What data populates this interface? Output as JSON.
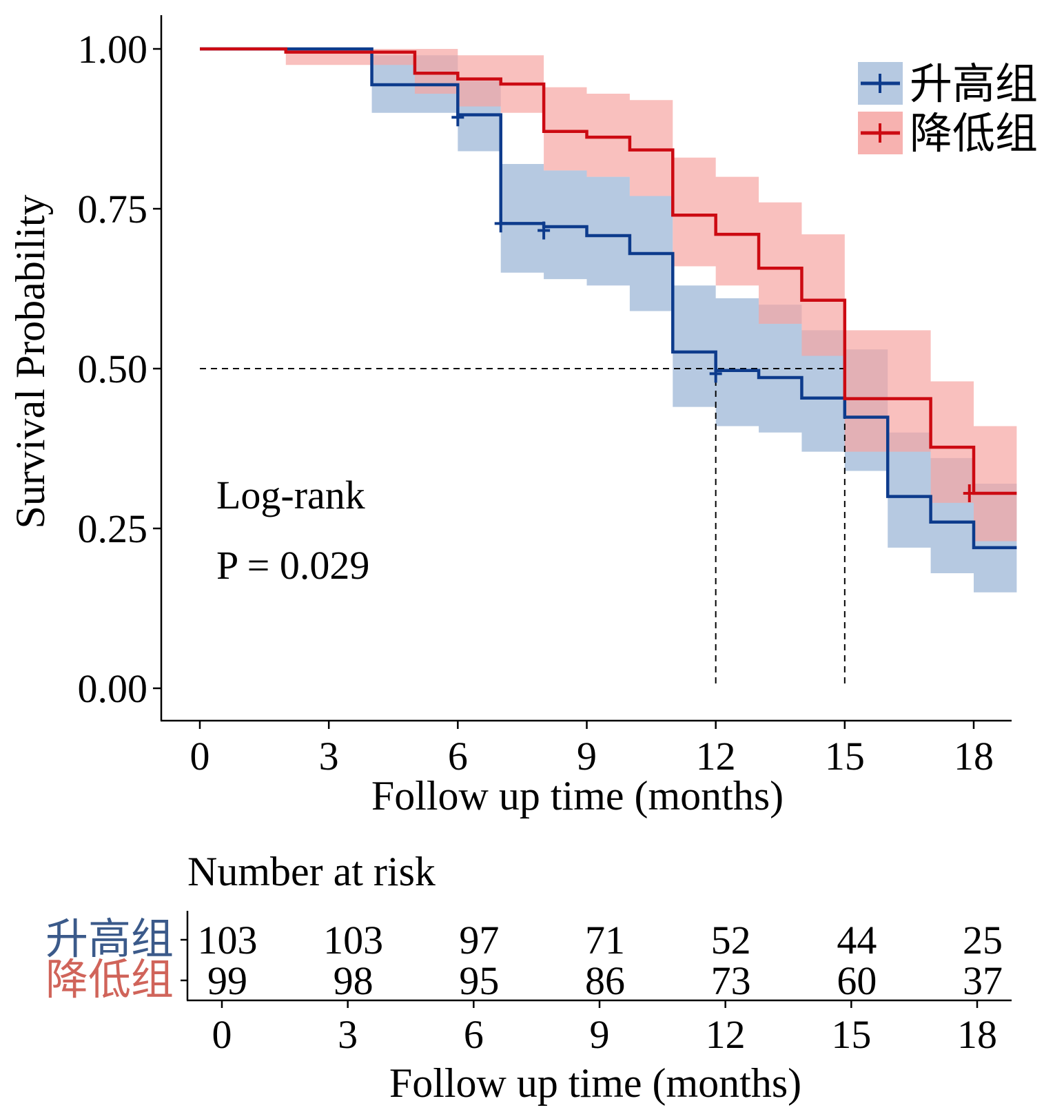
{
  "chart_data": {
    "type": "kaplan-meier",
    "xlabel": "Follow up time (months)",
    "ylabel": "Survival Probability",
    "xlim": [
      0,
      19
    ],
    "ylim": [
      0,
      1
    ],
    "x_ticks": [
      0,
      3,
      6,
      9,
      12,
      15,
      18
    ],
    "y_ticks": [
      0,
      0.25,
      0.5,
      0.75,
      1.0
    ],
    "y_tick_labels": [
      "0.00",
      "0.25",
      "0.50",
      "0.75",
      "1.00"
    ],
    "x_tick_labels": [
      "0",
      "3",
      "6",
      "9",
      "12",
      "15",
      "18"
    ],
    "legend_position": "top-right",
    "annotation": {
      "test": "Log-rank",
      "p_value": "P = 0.029"
    },
    "median_survival": {
      "reference_y": 0.5,
      "times": [
        12,
        15
      ]
    },
    "series": [
      {
        "name": "升高组",
        "color": "#0d3b8c",
        "band_color": "#a9c0dc",
        "steps": [
          {
            "t": 0,
            "s": 1.0,
            "lo": 1.0,
            "hi": 1.0
          },
          {
            "t": 4,
            "s": 0.944,
            "lo": 0.9,
            "hi": 0.99
          },
          {
            "t": 6,
            "s": 0.897,
            "lo": 0.84,
            "hi": 0.95
          },
          {
            "t": 7,
            "s": 0.727,
            "lo": 0.65,
            "hi": 0.82
          },
          {
            "t": 8,
            "s": 0.722,
            "lo": 0.64,
            "hi": 0.81
          },
          {
            "t": 9,
            "s": 0.708,
            "lo": 0.63,
            "hi": 0.8
          },
          {
            "t": 10,
            "s": 0.68,
            "lo": 0.59,
            "hi": 0.77
          },
          {
            "t": 11,
            "s": 0.526,
            "lo": 0.44,
            "hi": 0.63
          },
          {
            "t": 12,
            "s": 0.497,
            "lo": 0.41,
            "hi": 0.61
          },
          {
            "t": 13,
            "s": 0.486,
            "lo": 0.4,
            "hi": 0.6
          },
          {
            "t": 14,
            "s": 0.454,
            "lo": 0.37,
            "hi": 0.56
          },
          {
            "t": 15,
            "s": 0.424,
            "lo": 0.34,
            "hi": 0.53
          },
          {
            "t": 16,
            "s": 0.3,
            "lo": 0.22,
            "hi": 0.4
          },
          {
            "t": 17,
            "s": 0.26,
            "lo": 0.18,
            "hi": 0.36
          },
          {
            "t": 18,
            "s": 0.22,
            "lo": 0.15,
            "hi": 0.32
          }
        ],
        "censored": [
          {
            "t": 6.0,
            "s": 0.893
          },
          {
            "t": 7.0,
            "s": 0.727
          },
          {
            "t": 8.0,
            "s": 0.716
          },
          {
            "t": 12.0,
            "s": 0.492
          }
        ]
      },
      {
        "name": "降低组",
        "color": "#cc0a12",
        "band_color": "#f6a5a2",
        "steps": [
          {
            "t": 0,
            "s": 1.0,
            "lo": 1.0,
            "hi": 1.0
          },
          {
            "t": 2,
            "s": 0.995,
            "lo": 0.975,
            "hi": 1.0
          },
          {
            "t": 5,
            "s": 0.962,
            "lo": 0.93,
            "hi": 1.0
          },
          {
            "t": 6,
            "s": 0.953,
            "lo": 0.91,
            "hi": 0.99
          },
          {
            "t": 7,
            "s": 0.945,
            "lo": 0.9,
            "hi": 0.99
          },
          {
            "t": 8,
            "s": 0.871,
            "lo": 0.81,
            "hi": 0.94
          },
          {
            "t": 9,
            "s": 0.862,
            "lo": 0.8,
            "hi": 0.93
          },
          {
            "t": 10,
            "s": 0.842,
            "lo": 0.77,
            "hi": 0.92
          },
          {
            "t": 11,
            "s": 0.74,
            "lo": 0.66,
            "hi": 0.83
          },
          {
            "t": 12,
            "s": 0.71,
            "lo": 0.63,
            "hi": 0.8
          },
          {
            "t": 13,
            "s": 0.657,
            "lo": 0.57,
            "hi": 0.76
          },
          {
            "t": 14,
            "s": 0.607,
            "lo": 0.52,
            "hi": 0.71
          },
          {
            "t": 15,
            "s": 0.453,
            "lo": 0.37,
            "hi": 0.56
          },
          {
            "t": 17,
            "s": 0.377,
            "lo": 0.29,
            "hi": 0.48
          },
          {
            "t": 18,
            "s": 0.305,
            "lo": 0.23,
            "hi": 0.41
          }
        ],
        "censored": [
          {
            "t": 17.9,
            "s": 0.305
          }
        ]
      }
    ]
  },
  "risk_table": {
    "title": "Number at risk",
    "xlabel": "Follow up time (months)",
    "x_tick_labels": [
      "0",
      "3",
      "6",
      "9",
      "12",
      "15",
      "18"
    ],
    "groups": [
      {
        "name": "升高组",
        "color": "#3b5a8a",
        "counts": [
          "103",
          "103",
          "97",
          "71",
          "52",
          "44",
          "25"
        ]
      },
      {
        "name": "降低组",
        "color": "#d0645a",
        "counts": [
          "99",
          "98",
          "95",
          "86",
          "73",
          "60",
          "37"
        ]
      }
    ]
  }
}
